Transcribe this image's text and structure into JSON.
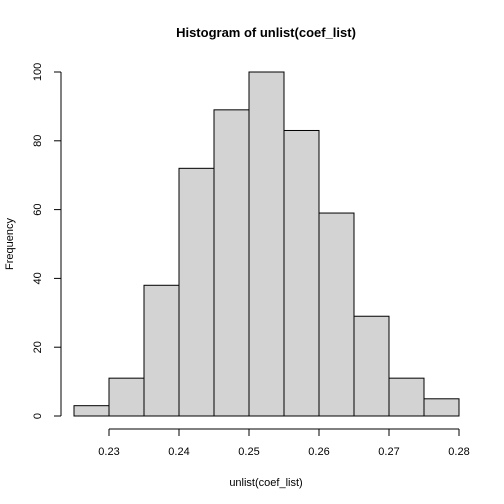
{
  "chart_data": {
    "type": "bar",
    "title": "Histogram of unlist(coef_list)",
    "xlabel": "unlist(coef_list)",
    "ylabel": "Frequency",
    "bin_edges": [
      0.225,
      0.23,
      0.235,
      0.24,
      0.245,
      0.25,
      0.255,
      0.26,
      0.265,
      0.27,
      0.275,
      0.28
    ],
    "values": [
      3,
      11,
      38,
      72,
      89,
      100,
      83,
      59,
      29,
      11,
      5
    ],
    "xlim": [
      0.225,
      0.28
    ],
    "ylim": [
      0,
      100
    ],
    "xticks": [
      0.23,
      0.24,
      0.25,
      0.26,
      0.27,
      0.28
    ],
    "xtick_labels": [
      "0.23",
      "0.24",
      "0.25",
      "0.26",
      "0.27",
      "0.28"
    ],
    "yticks": [
      0,
      20,
      40,
      60,
      80,
      100
    ],
    "ytick_labels": [
      "0",
      "20",
      "40",
      "60",
      "80",
      "100"
    ],
    "bar_color": "#d3d3d3",
    "grid": false,
    "legend": "none"
  }
}
